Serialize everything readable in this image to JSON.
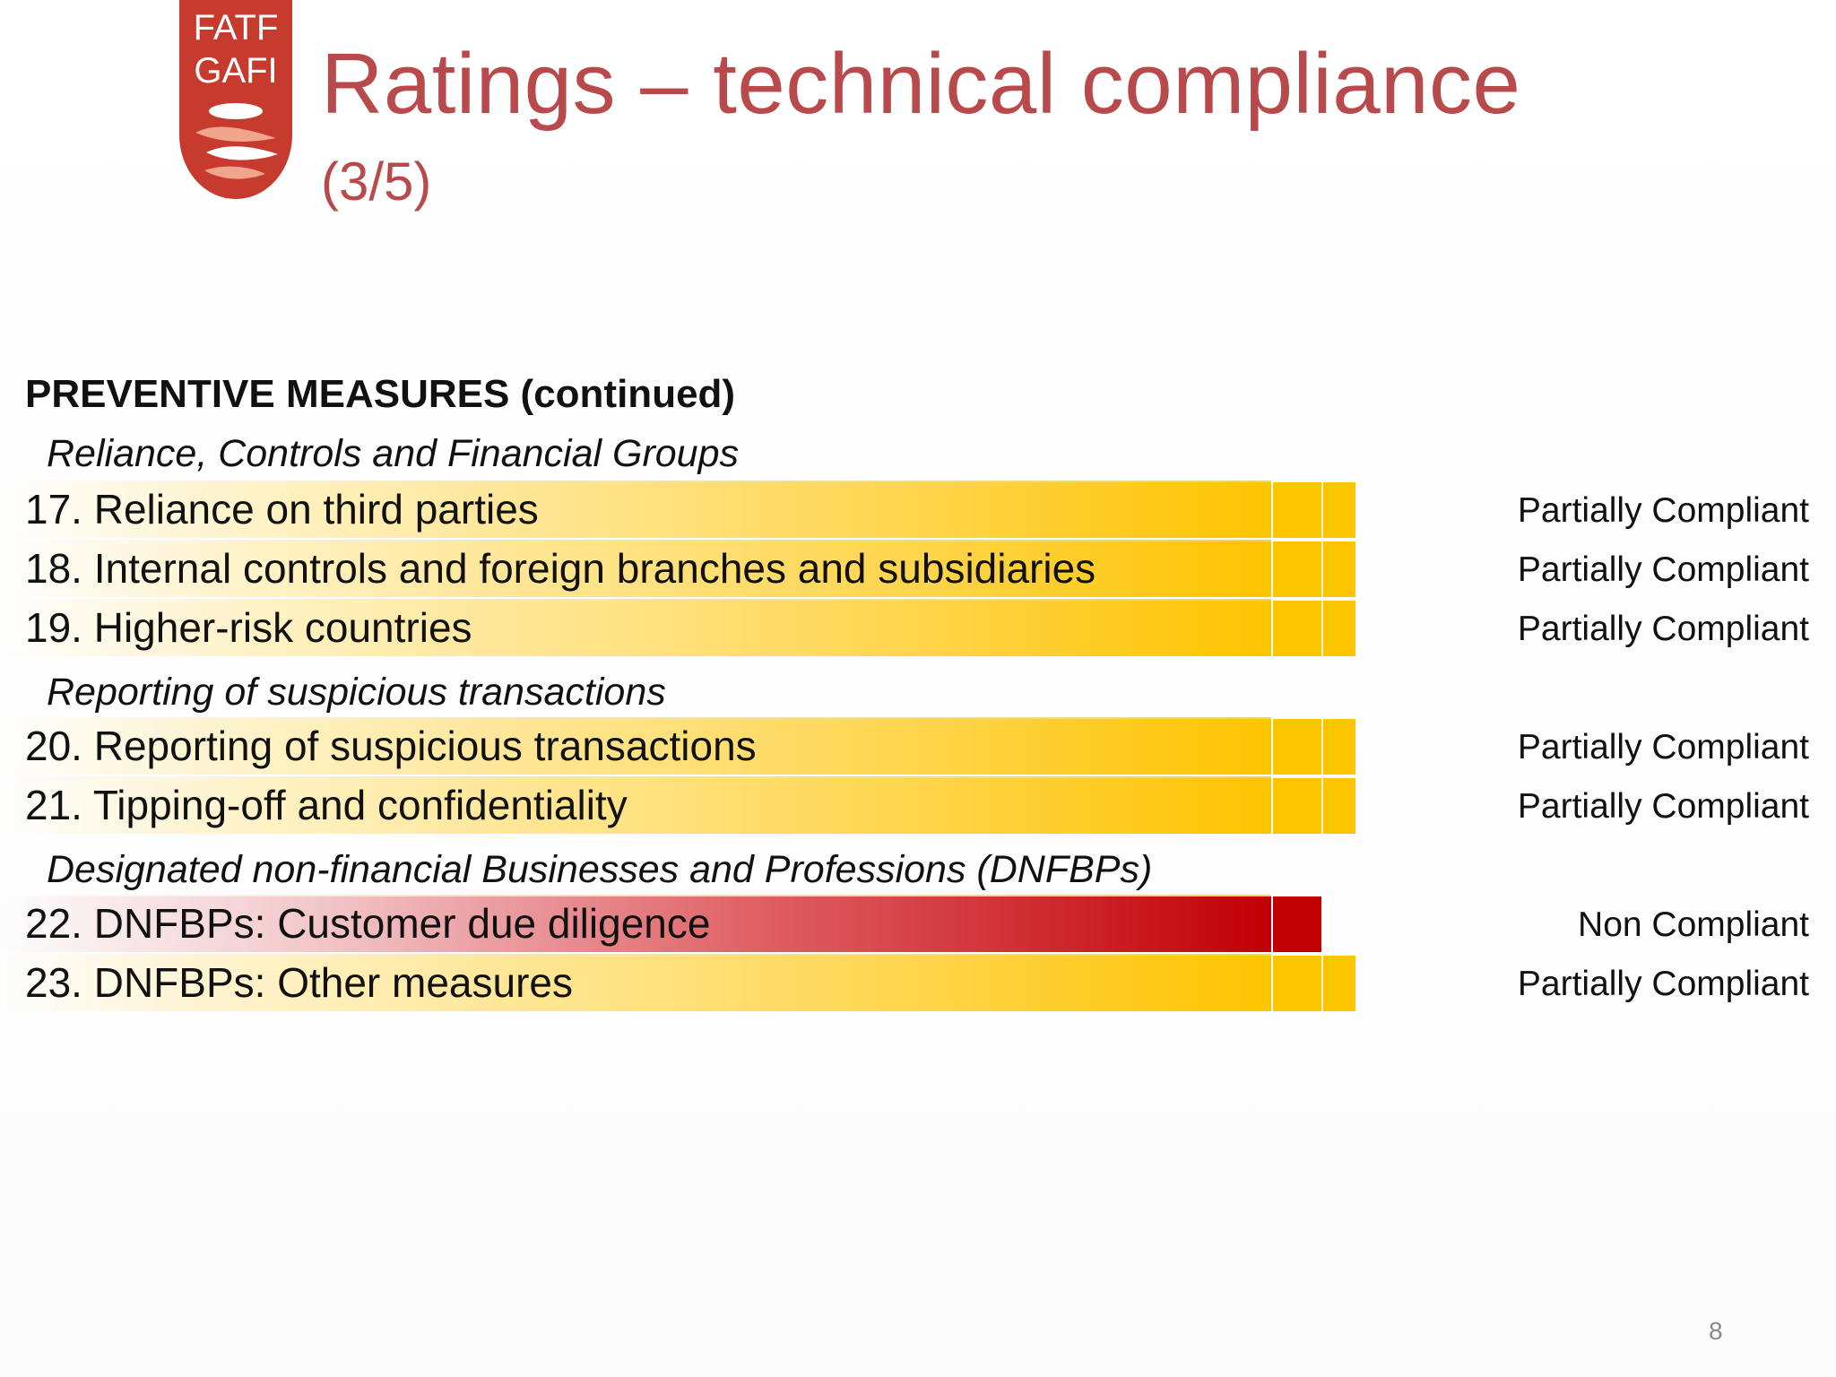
{
  "logo": {
    "line1": "FATF",
    "line2": "GAFI",
    "color": "#c0392b"
  },
  "title": "Ratings – technical compliance",
  "subtitle": "(3/5)",
  "section_header": "PREVENTIVE MEASURES (continued)",
  "subheadings": {
    "reliance": "Reliance, Controls and Financial Groups",
    "reporting": "Reporting of suspicious transactions",
    "dnfbp": "Designated non-financial Businesses and Professions (DNFBPs)"
  },
  "rows": [
    {
      "label": "17. Reliance on third parties",
      "rating": "Partially Compliant"
    },
    {
      "label": "18. Internal controls and foreign branches and subsidiaries",
      "rating": "Partially Compliant"
    },
    {
      "label": "19. Higher-risk countries",
      "rating": "Partially Compliant"
    },
    {
      "label": "20. Reporting of suspicious transactions",
      "rating": "Partially Compliant"
    },
    {
      "label": "21. Tipping-off and confidentiality",
      "rating": "Partially Compliant"
    },
    {
      "label": "22. DNFBPs: Customer due diligence",
      "rating": "Non Compliant"
    },
    {
      "label": "23. DNFBPs: Other measures",
      "rating": "Partially Compliant"
    }
  ],
  "colors": {
    "title": "#b94a4c",
    "partially_compliant": "#fdc400",
    "non_compliant": "#c00000"
  },
  "page_number": "8"
}
